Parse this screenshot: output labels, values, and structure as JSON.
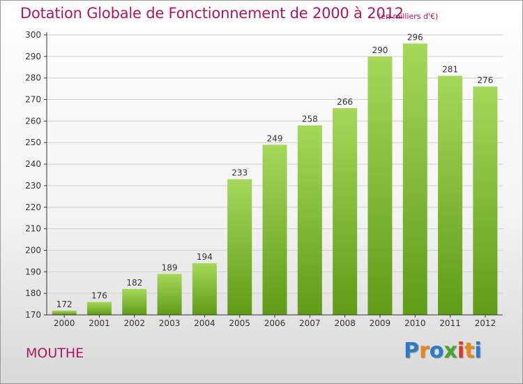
{
  "title": "Dotation Globale de Fonctionnement de 2000 à 2012",
  "unit_note": "(en milliers d'€)",
  "commune": "MOUTHE",
  "logo": {
    "letters": [
      "P",
      "r",
      "o",
      "x",
      "i",
      "t",
      "i"
    ],
    "colors": [
      "#2a7cc7",
      "#e8891a",
      "#2a7cc7",
      "#4aa52a",
      "#d83a2a",
      "#e8891a",
      "#2a7cc7"
    ]
  },
  "colors": {
    "bar_top": "#a6d85a",
    "bar_bottom": "#5f9c16",
    "text": "#b0155f",
    "axis": "#333333",
    "grid": "#cfcfcf"
  },
  "chart_data": {
    "type": "bar",
    "title": "Dotation Globale de Fonctionnement de 2000 à 2012",
    "xlabel": "",
    "ylabel": "",
    "categories": [
      "2000",
      "2001",
      "2002",
      "2003",
      "2004",
      "2005",
      "2006",
      "2007",
      "2008",
      "2009",
      "2010",
      "2011",
      "2012"
    ],
    "values": [
      172,
      176,
      182,
      189,
      194,
      233,
      249,
      258,
      266,
      290,
      296,
      281,
      276
    ],
    "ylim": [
      170,
      300
    ],
    "yticks": [
      170,
      180,
      190,
      200,
      210,
      220,
      230,
      240,
      250,
      260,
      270,
      280,
      290,
      300
    ],
    "grid": true,
    "legend": "none"
  }
}
